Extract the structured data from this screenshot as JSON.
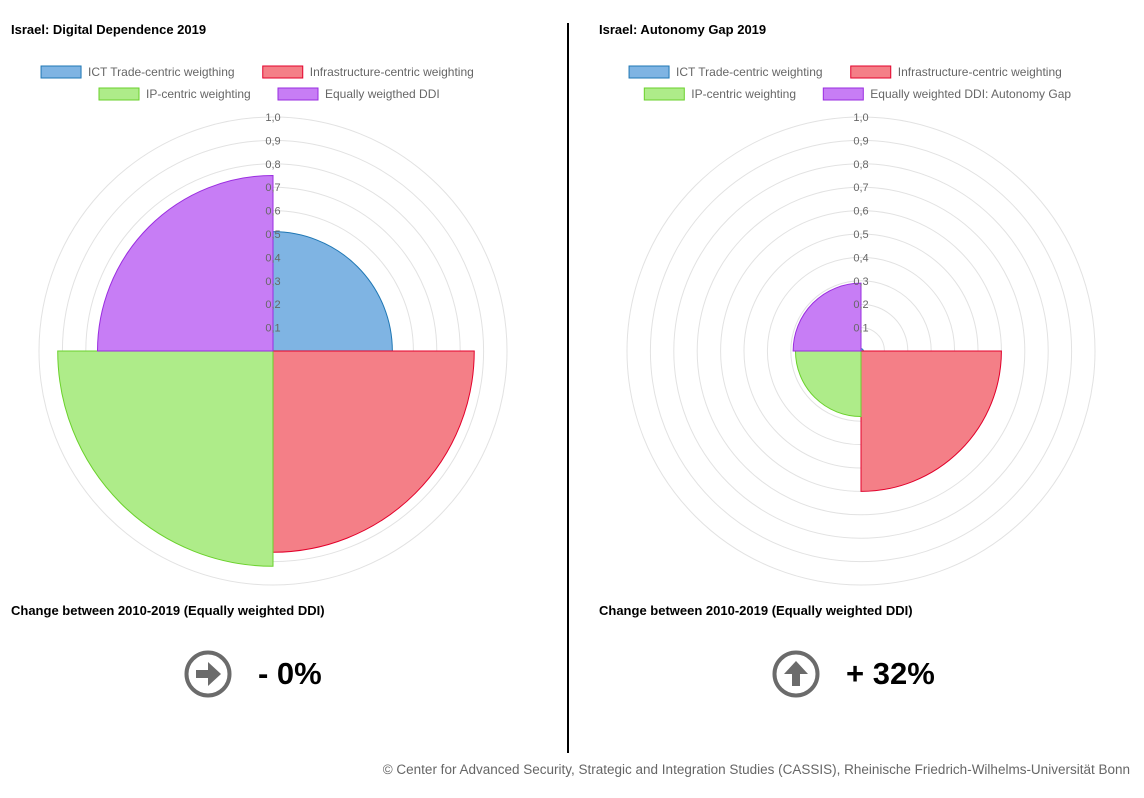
{
  "chart_data": [
    {
      "type": "polarArea",
      "title": "Israel: Digital Dependence 2019",
      "categories": [
        "ICT Trade-centric weigthing",
        "Infrastructure-centric weighting",
        "IP-centric weighting",
        "Equally weigthed DDI"
      ],
      "values": [
        0.51,
        0.86,
        0.92,
        0.75
      ],
      "colors": [
        "#7fb4e3",
        "#f47f87",
        "#aeec89",
        "#c77df5"
      ],
      "border_colors": [
        "#1f77b4",
        "#e3002b",
        "#6ad12b",
        "#9a2de0"
      ],
      "rlim": [
        0,
        1.0
      ],
      "ticks": [
        "0,1",
        "0,2",
        "0,3",
        "0,4",
        "0,5",
        "0,6",
        "0,7",
        "0,8",
        "0,9",
        "1,0"
      ],
      "legend_position": "top",
      "grid": true
    },
    {
      "type": "polarArea",
      "title": "Israel: Autonomy Gap 2019",
      "categories": [
        "ICT Trade-centric weighting",
        "Infrastructure-centric weighting",
        "IP-centric weighting",
        "Equally weighted DDI: Autonomy Gap"
      ],
      "values": [
        0.01,
        0.6,
        0.28,
        0.29
      ],
      "colors": [
        "#7fb4e3",
        "#f47f87",
        "#aeec89",
        "#c77df5"
      ],
      "border_colors": [
        "#1f77b4",
        "#e3002b",
        "#6ad12b",
        "#9a2de0"
      ],
      "rlim": [
        0,
        1.0
      ],
      "ticks": [
        "0,1",
        "0,2",
        "0,3",
        "0,4",
        "0,5",
        "0,6",
        "0,7",
        "0,8",
        "0,9",
        "1,0"
      ],
      "legend_position": "top",
      "grid": true
    }
  ],
  "left": {
    "change_label": "Change between 2010-2019 (Equally weighted DDI)",
    "change_icon": "arrow-right-circle-icon",
    "change_value": "- 0%"
  },
  "right": {
    "change_label": "Change between 2010-2019 (Equally weighted DDI)",
    "change_icon": "arrow-up-circle-icon",
    "change_value": "+ 32%"
  },
  "footer": "© Center for Advanced Security, Strategic and Integration Studies (CASSIS), Rheinische Friedrich-Wilhelms-Universität Bonn"
}
